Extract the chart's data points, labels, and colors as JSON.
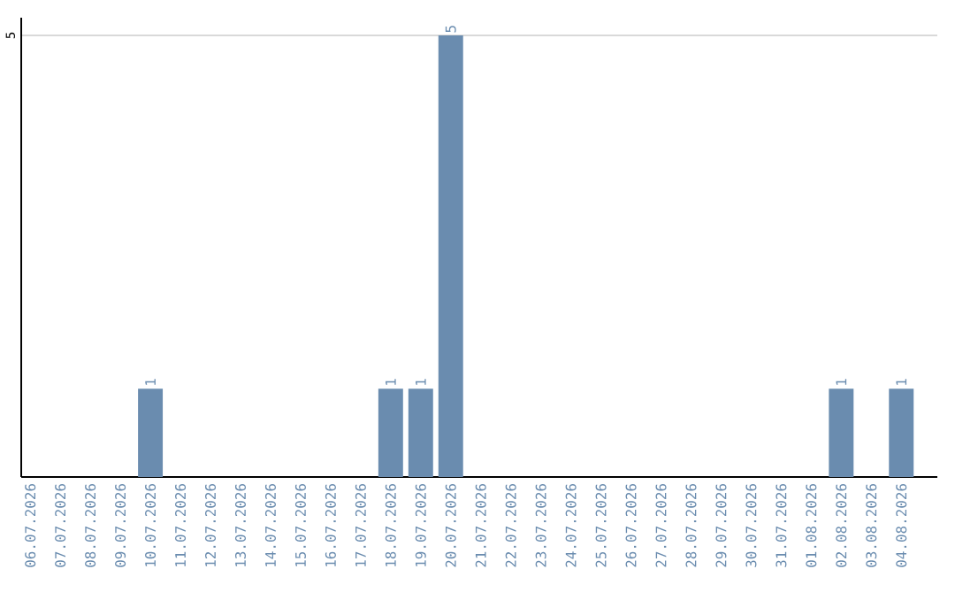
{
  "chart_data": {
    "type": "bar",
    "categories": [
      "06.07.2026",
      "07.07.2026",
      "08.07.2026",
      "09.07.2026",
      "10.07.2026",
      "11.07.2026",
      "12.07.2026",
      "13.07.2026",
      "14.07.2026",
      "15.07.2026",
      "16.07.2026",
      "17.07.2026",
      "18.07.2026",
      "19.07.2026",
      "20.07.2026",
      "21.07.2026",
      "22.07.2026",
      "23.07.2026",
      "24.07.2026",
      "25.07.2026",
      "26.07.2026",
      "27.07.2026",
      "28.07.2026",
      "29.07.2026",
      "30.07.2026",
      "31.07.2026",
      "01.08.2026",
      "02.08.2026",
      "03.08.2026",
      "04.08.2026"
    ],
    "values": [
      0,
      0,
      0,
      0,
      1,
      0,
      0,
      0,
      0,
      0,
      0,
      0,
      1,
      1,
      5,
      0,
      0,
      0,
      0,
      0,
      0,
      0,
      0,
      0,
      0,
      0,
      0,
      1,
      0,
      1
    ],
    "color": "#6a8caf",
    "value_labels": [
      null,
      null,
      null,
      null,
      "1",
      null,
      null,
      null,
      null,
      null,
      null,
      null,
      "1",
      "1",
      "5",
      null,
      null,
      null,
      null,
      null,
      null,
      null,
      null,
      null,
      null,
      null,
      null,
      "1",
      null,
      "1"
    ],
    "ylim": [
      0,
      5.2
    ],
    "yticks": [
      5
    ],
    "grid": "y"
  }
}
